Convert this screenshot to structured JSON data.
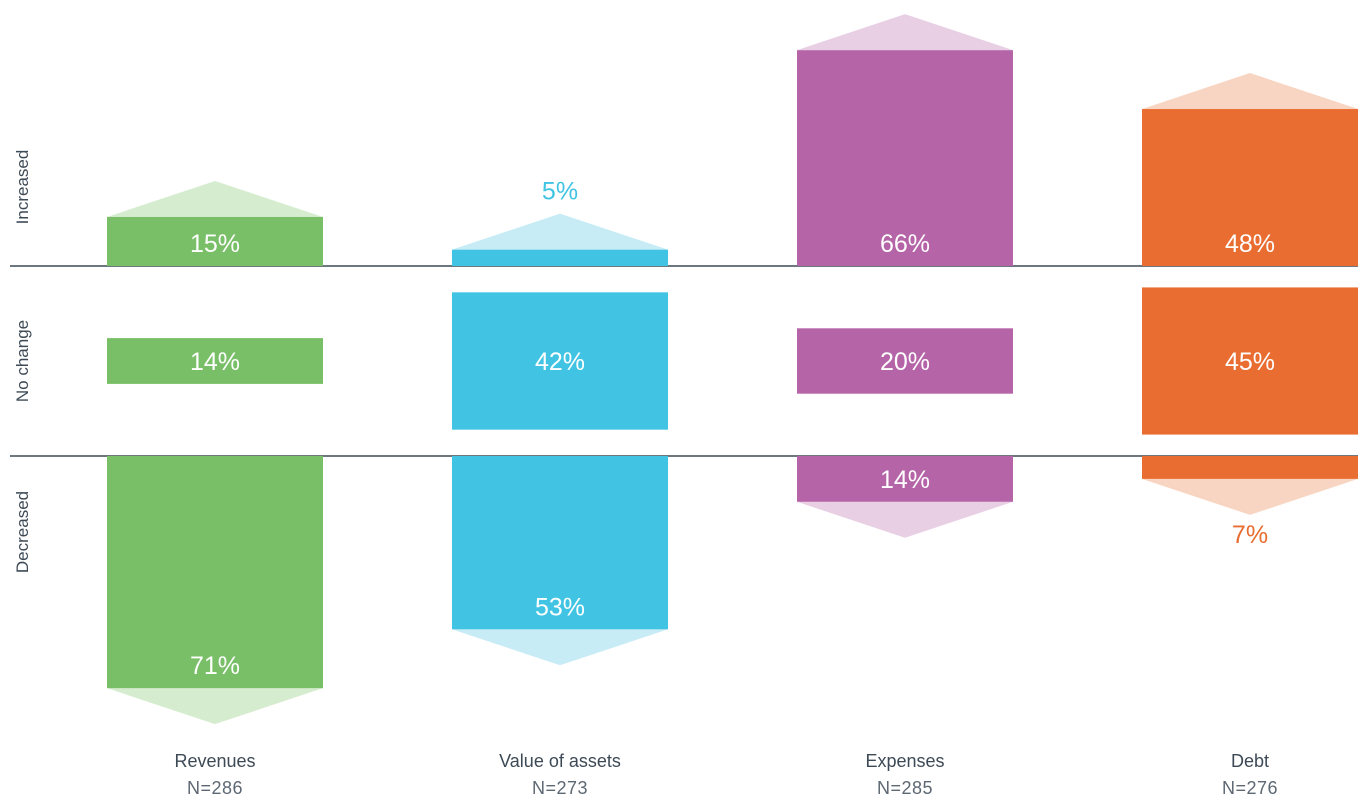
{
  "chart_data": {
    "type": "bar",
    "row_labels": [
      "Increased",
      "No change",
      "Decreased"
    ],
    "categories": [
      {
        "name": "Revenues",
        "n": "N=286",
        "color": "#79bf67",
        "light": "#d6eccf",
        "increased": 15,
        "no_change": 14,
        "decreased": 71,
        "labels": {
          "increased": "15%",
          "no_change": "14%",
          "decreased": "71%"
        }
      },
      {
        "name": "Value of assets",
        "n": "N=273",
        "color": "#41c4e3",
        "light": "#c8ecf6",
        "increased": 5,
        "no_change": 42,
        "decreased": 53,
        "labels": {
          "increased": "5%",
          "no_change": "42%",
          "decreased": "53%"
        }
      },
      {
        "name": "Expenses",
        "n": "N=285",
        "color": "#b564a7",
        "light": "#e8cfe3",
        "increased": 66,
        "no_change": 20,
        "decreased": 14,
        "labels": {
          "increased": "66%",
          "no_change": "20%",
          "decreased": "14%"
        }
      },
      {
        "name": "Debt",
        "n": "N=276",
        "color": "#e96c30",
        "light": "#f8d4c2",
        "increased": 48,
        "no_change": 45,
        "decreased": 7,
        "labels": {
          "increased": "48%",
          "no_change": "45%",
          "decreased": "7%"
        }
      }
    ]
  }
}
